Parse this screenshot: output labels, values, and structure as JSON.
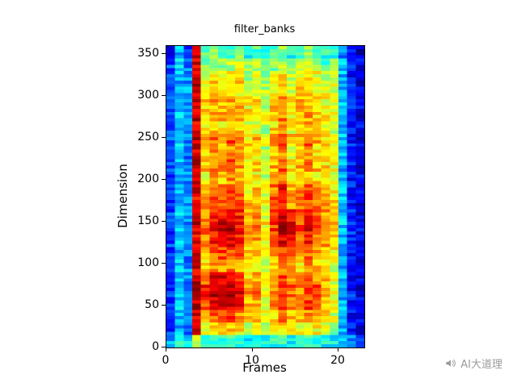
{
  "title": "filter_banks",
  "watermark": {
    "text": "AI大道理"
  },
  "chart_data": {
    "type": "heatmap",
    "title": "filter_banks",
    "xlabel": "Frames",
    "ylabel": "Dimension",
    "xlim": [
      0,
      23
    ],
    "ylim": [
      0,
      360
    ],
    "xticks": [
      0,
      10,
      20
    ],
    "yticks": [
      0,
      50,
      100,
      150,
      200,
      250,
      300,
      350
    ],
    "colormap": "jet",
    "grid": false,
    "legend": "none",
    "matrix_orientation": "rows top-to-bottom (dimension high to low), columns left-to-right (frame 0 to 23); values are normalized 0-1 intensities",
    "values": [
      [
        0.15,
        0.3,
        0.2,
        0.9,
        0.45,
        0.5,
        0.4,
        0.45,
        0.5,
        0.4,
        0.45,
        0.35,
        0.45,
        0.5,
        0.4,
        0.45,
        0.5,
        0.45,
        0.4,
        0.42,
        0.25,
        0.12,
        0.08
      ],
      [
        0.2,
        0.35,
        0.25,
        0.92,
        0.5,
        0.55,
        0.5,
        0.55,
        0.6,
        0.5,
        0.55,
        0.45,
        0.5,
        0.55,
        0.5,
        0.55,
        0.6,
        0.5,
        0.45,
        0.48,
        0.3,
        0.15,
        0.1
      ],
      [
        0.18,
        0.3,
        0.25,
        0.9,
        0.6,
        0.65,
        0.6,
        0.62,
        0.65,
        0.55,
        0.6,
        0.5,
        0.6,
        0.65,
        0.55,
        0.6,
        0.65,
        0.6,
        0.55,
        0.55,
        0.3,
        0.15,
        0.1
      ],
      [
        0.2,
        0.32,
        0.28,
        0.92,
        0.62,
        0.68,
        0.65,
        0.7,
        0.65,
        0.6,
        0.62,
        0.55,
        0.65,
        0.7,
        0.6,
        0.65,
        0.68,
        0.62,
        0.6,
        0.6,
        0.32,
        0.15,
        0.1
      ],
      [
        0.18,
        0.3,
        0.25,
        0.9,
        0.65,
        0.7,
        0.68,
        0.72,
        0.7,
        0.62,
        0.65,
        0.55,
        0.68,
        0.72,
        0.62,
        0.68,
        0.7,
        0.65,
        0.62,
        0.6,
        0.3,
        0.15,
        0.1
      ],
      [
        0.2,
        0.33,
        0.27,
        0.93,
        0.68,
        0.75,
        0.7,
        0.75,
        0.72,
        0.65,
        0.68,
        0.6,
        0.7,
        0.75,
        0.65,
        0.7,
        0.72,
        0.68,
        0.65,
        0.62,
        0.32,
        0.15,
        0.1
      ],
      [
        0.18,
        0.3,
        0.25,
        0.9,
        0.62,
        0.7,
        0.65,
        0.7,
        0.68,
        0.6,
        0.62,
        0.55,
        0.65,
        0.72,
        0.62,
        0.65,
        0.7,
        0.62,
        0.6,
        0.58,
        0.3,
        0.14,
        0.1
      ],
      [
        0.2,
        0.32,
        0.26,
        0.92,
        0.7,
        0.78,
        0.72,
        0.8,
        0.75,
        0.65,
        0.68,
        0.58,
        0.72,
        0.8,
        0.68,
        0.72,
        0.78,
        0.7,
        0.65,
        0.62,
        0.3,
        0.15,
        0.1
      ],
      [
        0.18,
        0.3,
        0.25,
        0.9,
        0.65,
        0.72,
        0.68,
        0.72,
        0.7,
        0.62,
        0.65,
        0.55,
        0.68,
        0.75,
        0.62,
        0.68,
        0.72,
        0.65,
        0.62,
        0.58,
        0.3,
        0.14,
        0.1
      ],
      [
        0.2,
        0.32,
        0.27,
        0.92,
        0.68,
        0.75,
        0.72,
        0.78,
        0.72,
        0.65,
        0.65,
        0.58,
        0.7,
        0.78,
        0.65,
        0.7,
        0.75,
        0.68,
        0.65,
        0.6,
        0.3,
        0.15,
        0.1
      ],
      [
        0.18,
        0.3,
        0.25,
        0.9,
        0.62,
        0.7,
        0.68,
        0.72,
        0.68,
        0.6,
        0.62,
        0.55,
        0.68,
        0.72,
        0.62,
        0.65,
        0.7,
        0.65,
        0.6,
        0.58,
        0.3,
        0.14,
        0.1
      ],
      [
        0.2,
        0.33,
        0.27,
        0.92,
        0.7,
        0.78,
        0.75,
        0.8,
        0.75,
        0.65,
        0.68,
        0.6,
        0.75,
        0.85,
        0.7,
        0.72,
        0.8,
        0.72,
        0.68,
        0.63,
        0.32,
        0.15,
        0.1
      ],
      [
        0.18,
        0.32,
        0.26,
        0.9,
        0.72,
        0.8,
        0.78,
        0.82,
        0.78,
        0.68,
        0.7,
        0.6,
        0.78,
        0.88,
        0.72,
        0.75,
        0.82,
        0.75,
        0.7,
        0.65,
        0.32,
        0.15,
        0.1
      ],
      [
        0.2,
        0.33,
        0.27,
        0.93,
        0.75,
        0.85,
        0.88,
        0.92,
        0.85,
        0.7,
        0.72,
        0.62,
        0.8,
        0.95,
        0.85,
        0.78,
        0.85,
        0.8,
        0.72,
        0.68,
        0.33,
        0.15,
        0.1
      ],
      [
        0.18,
        0.32,
        0.26,
        0.92,
        0.78,
        0.88,
        0.92,
        0.96,
        0.88,
        0.72,
        0.75,
        0.65,
        0.82,
        0.97,
        0.9,
        0.8,
        0.88,
        0.82,
        0.75,
        0.7,
        0.33,
        0.15,
        0.1
      ],
      [
        0.2,
        0.33,
        0.27,
        0.9,
        0.75,
        0.85,
        0.88,
        0.9,
        0.85,
        0.7,
        0.72,
        0.62,
        0.78,
        0.9,
        0.85,
        0.78,
        0.85,
        0.78,
        0.72,
        0.66,
        0.32,
        0.15,
        0.1
      ],
      [
        0.18,
        0.3,
        0.25,
        0.9,
        0.7,
        0.78,
        0.8,
        0.82,
        0.78,
        0.65,
        0.68,
        0.58,
        0.72,
        0.82,
        0.78,
        0.72,
        0.78,
        0.72,
        0.68,
        0.62,
        0.3,
        0.14,
        0.1
      ],
      [
        0.2,
        0.32,
        0.26,
        0.9,
        0.65,
        0.72,
        0.7,
        0.75,
        0.7,
        0.6,
        0.62,
        0.55,
        0.65,
        0.72,
        0.68,
        0.65,
        0.72,
        0.68,
        0.62,
        0.58,
        0.3,
        0.14,
        0.1
      ],
      [
        0.18,
        0.32,
        0.26,
        0.92,
        0.78,
        0.88,
        0.9,
        0.92,
        0.85,
        0.68,
        0.7,
        0.6,
        0.72,
        0.8,
        0.75,
        0.72,
        0.8,
        0.75,
        0.68,
        0.6,
        0.3,
        0.15,
        0.1
      ],
      [
        0.2,
        0.33,
        0.27,
        0.95,
        0.85,
        0.95,
        0.97,
        0.95,
        0.9,
        0.72,
        0.75,
        0.62,
        0.75,
        0.82,
        0.78,
        0.75,
        0.85,
        0.8,
        0.7,
        0.62,
        0.32,
        0.15,
        0.1
      ],
      [
        0.18,
        0.32,
        0.26,
        0.93,
        0.82,
        0.92,
        0.95,
        0.92,
        0.88,
        0.7,
        0.72,
        0.6,
        0.72,
        0.8,
        0.75,
        0.72,
        0.82,
        0.78,
        0.68,
        0.6,
        0.3,
        0.14,
        0.1
      ],
      [
        0.2,
        0.3,
        0.25,
        0.9,
        0.7,
        0.8,
        0.82,
        0.8,
        0.75,
        0.65,
        0.68,
        0.58,
        0.68,
        0.75,
        0.7,
        0.68,
        0.75,
        0.72,
        0.65,
        0.58,
        0.3,
        0.14,
        0.1
      ],
      [
        0.18,
        0.3,
        0.25,
        0.88,
        0.62,
        0.68,
        0.7,
        0.68,
        0.65,
        0.58,
        0.6,
        0.52,
        0.62,
        0.65,
        0.62,
        0.6,
        0.65,
        0.62,
        0.58,
        0.52,
        0.28,
        0.13,
        0.1
      ],
      [
        0.3,
        0.38,
        0.35,
        0.6,
        0.4,
        0.42,
        0.4,
        0.42,
        0.4,
        0.38,
        0.4,
        0.36,
        0.4,
        0.42,
        0.38,
        0.4,
        0.42,
        0.4,
        0.38,
        0.36,
        0.32,
        0.25,
        0.2
      ]
    ]
  }
}
